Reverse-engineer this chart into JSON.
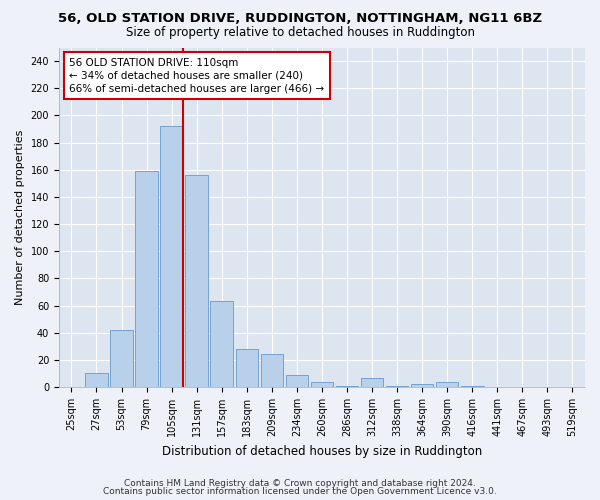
{
  "title_line1": "56, OLD STATION DRIVE, RUDDINGTON, NOTTINGHAM, NG11 6BZ",
  "title_line2": "Size of property relative to detached houses in Ruddington",
  "xlabel": "Distribution of detached houses by size in Ruddington",
  "ylabel": "Number of detached properties",
  "categories": [
    "25sqm",
    "27sqm",
    "53sqm",
    "79sqm",
    "105sqm",
    "131sqm",
    "157sqm",
    "183sqm",
    "209sqm",
    "234sqm",
    "260sqm",
    "286sqm",
    "312sqm",
    "338sqm",
    "364sqm",
    "390sqm",
    "416sqm",
    "441sqm",
    "467sqm",
    "493sqm",
    "519sqm"
  ],
  "values": [
    0,
    10,
    42,
    159,
    192,
    156,
    63,
    28,
    24,
    9,
    4,
    1,
    7,
    1,
    2,
    4,
    1,
    0,
    0,
    0,
    0
  ],
  "bar_color": "#b8d0ea",
  "bar_edge_color": "#6699cc",
  "annotation_title": "56 OLD STATION DRIVE: 110sqm",
  "annotation_line2": "← 34% of detached houses are smaller (240)",
  "annotation_line3": "66% of semi-detached houses are larger (466) →",
  "annotation_box_color": "#ffffff",
  "annotation_box_edgecolor": "#cc0000",
  "property_line_color": "#cc0000",
  "ylim": [
    0,
    250
  ],
  "yticks": [
    0,
    20,
    40,
    60,
    80,
    100,
    120,
    140,
    160,
    180,
    200,
    220,
    240
  ],
  "footer_line1": "Contains HM Land Registry data © Crown copyright and database right 2024.",
  "footer_line2": "Contains public sector information licensed under the Open Government Licence v3.0.",
  "bg_color": "#eef2f8",
  "plot_bg_color": "#dde5f0",
  "grid_color": "#ffffff",
  "title_fontsize": 9.5,
  "subtitle_fontsize": 8.5,
  "tick_fontsize": 7,
  "ylabel_fontsize": 8,
  "xlabel_fontsize": 8.5,
  "footer_fontsize": 6.5,
  "annotation_fontsize": 7.5
}
